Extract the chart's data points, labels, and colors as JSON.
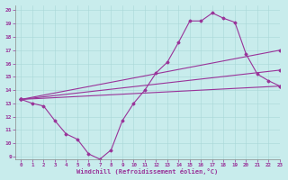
{
  "title": "",
  "xlabel": "Windchill (Refroidissement éolien,°C)",
  "ylabel": "",
  "bg_color": "#c8ecec",
  "line_color": "#993399",
  "xlim": [
    -0.5,
    23
  ],
  "ylim": [
    8.8,
    20.4
  ],
  "yticks": [
    9,
    10,
    11,
    12,
    13,
    14,
    15,
    16,
    17,
    18,
    19,
    20
  ],
  "xticks": [
    0,
    1,
    2,
    3,
    4,
    5,
    6,
    7,
    8,
    9,
    10,
    11,
    12,
    13,
    14,
    15,
    16,
    17,
    18,
    19,
    20,
    21,
    22,
    23
  ],
  "series1_x": [
    0,
    1,
    2,
    3,
    4,
    5,
    6,
    7,
    8,
    9,
    10,
    11,
    12,
    13,
    14,
    15,
    16,
    17,
    18,
    19,
    20,
    21,
    22,
    23
  ],
  "series1_y": [
    13.3,
    13.0,
    12.8,
    11.7,
    10.7,
    10.3,
    9.2,
    8.8,
    9.5,
    11.7,
    13.0,
    14.0,
    15.3,
    16.1,
    17.6,
    19.2,
    19.2,
    19.8,
    19.4,
    19.1,
    16.7,
    15.2,
    14.7,
    14.3
  ],
  "series2_x": [
    0,
    23
  ],
  "series2_y": [
    13.3,
    14.3
  ],
  "series3_x": [
    0,
    23
  ],
  "series3_y": [
    13.3,
    15.5
  ],
  "series4_x": [
    0,
    23
  ],
  "series4_y": [
    13.3,
    17.0
  ],
  "markersize": 1.5,
  "linewidth": 0.8
}
